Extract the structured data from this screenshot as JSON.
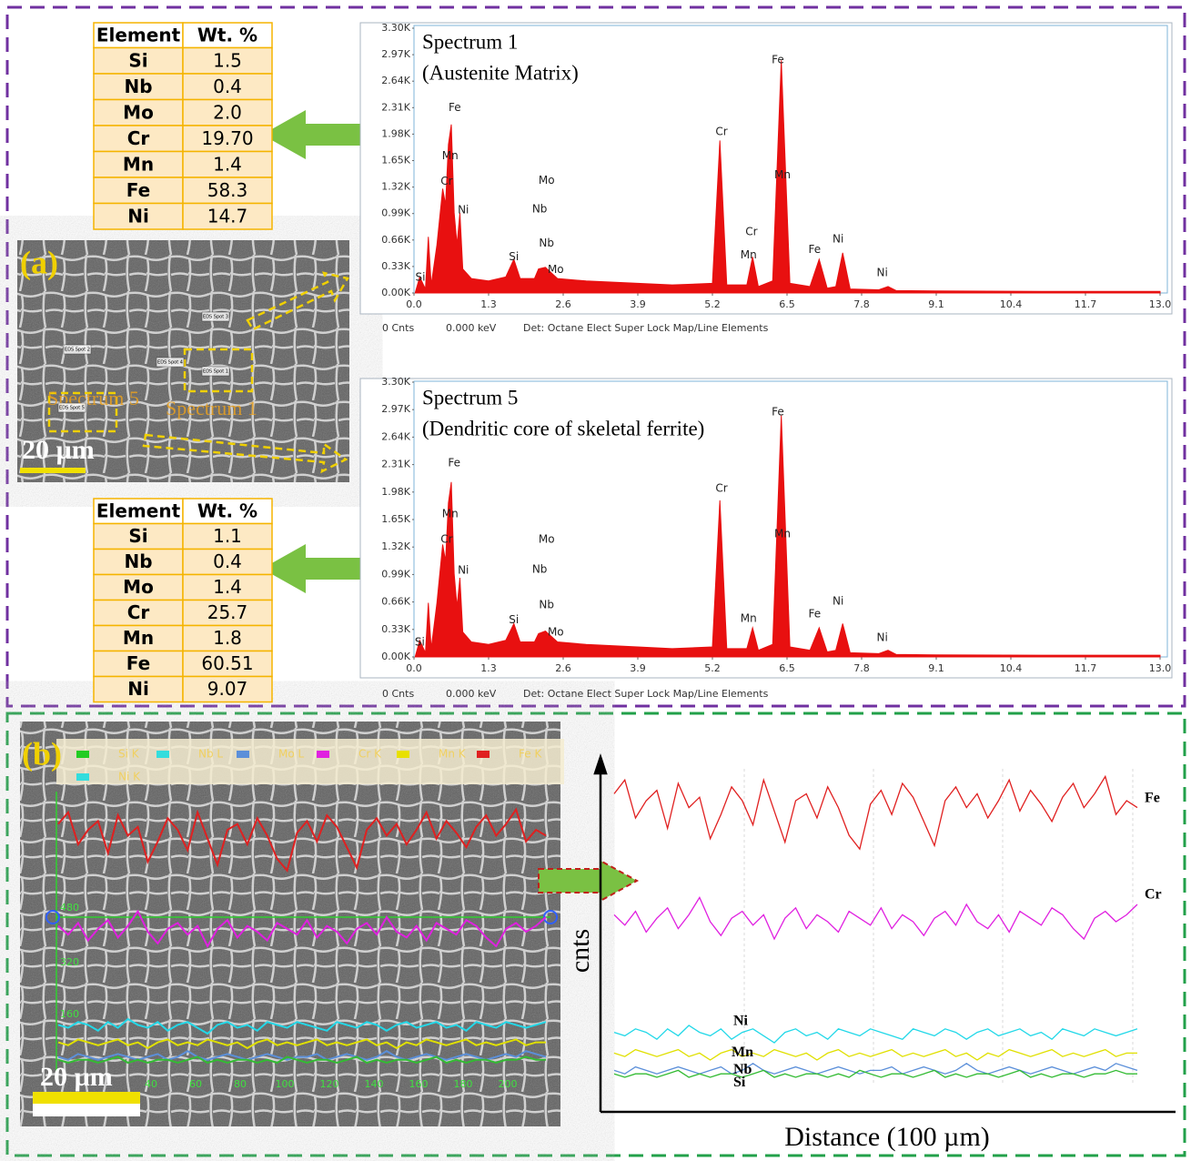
{
  "tables": [
    {
      "header": [
        "Element",
        "Wt. %"
      ],
      "rows": [
        [
          "Si",
          "1.5"
        ],
        [
          "Nb",
          "0.4"
        ],
        [
          "Mo",
          "2.0"
        ],
        [
          "Cr",
          "19.70"
        ],
        [
          "Mn",
          "1.4"
        ],
        [
          "Fe",
          "58.3"
        ],
        [
          "Ni",
          "14.7"
        ]
      ]
    },
    {
      "header": [
        "Element",
        "Wt. %"
      ],
      "rows": [
        [
          "Si",
          "1.1"
        ],
        [
          "Nb",
          "0.4"
        ],
        [
          "Mo",
          "1.4"
        ],
        [
          "Cr",
          "25.7"
        ],
        [
          "Mn",
          "1.8"
        ],
        [
          "Fe",
          "60.51"
        ],
        [
          "Ni",
          "9.07"
        ]
      ]
    }
  ],
  "images": [
    {
      "panel_label": "(a)",
      "scale_bar": "20 µm",
      "region_labels": [
        "Spectrum 5",
        "Spectrum 1"
      ],
      "spot_labels": [
        "EDS Spot 1",
        "EDS Spot 2",
        "EDS Spot 3",
        "EDS Spot 4",
        "EDS Spot 5"
      ]
    },
    {
      "panel_label": "(b)",
      "scale_bar": "20 µm",
      "legend": [
        {
          "label": "Si K",
          "color": "#22cc22"
        },
        {
          "label": "Nb L",
          "color": "#33dddd"
        },
        {
          "label": "Mo L",
          "color": "#5b8fd9"
        },
        {
          "label": "Cr K",
          "color": "#e020e0"
        },
        {
          "label": "Mn K",
          "color": "#e8e000"
        },
        {
          "label": "Fe K",
          "color": "#e02020"
        },
        {
          "label": "Ni K",
          "color": "#33dddd"
        }
      ],
      "overlay_yticks": [
        480,
        320,
        160
      ],
      "overlay_xticks": [
        40,
        60,
        80,
        100,
        120,
        140,
        160,
        180,
        200
      ]
    }
  ],
  "chart_data": [
    {
      "type": "area",
      "title": "Spectrum 1",
      "subtitle": "(Austenite Matrix)",
      "color": "#e81010",
      "x": [
        0.02,
        0.1,
        0.2,
        0.25,
        0.3,
        0.4,
        0.5,
        0.55,
        0.6,
        0.65,
        0.7,
        0.75,
        0.8,
        0.85,
        1.0,
        1.3,
        1.6,
        1.74,
        1.85,
        2.1,
        2.17,
        2.29,
        2.5,
        3.0,
        3.9,
        4.5,
        5.2,
        5.33,
        5.45,
        5.8,
        5.9,
        6.0,
        6.25,
        6.4,
        6.55,
        6.9,
        7.06,
        7.2,
        7.35,
        7.47,
        7.6,
        8.1,
        8.26,
        8.4,
        9.1,
        11.0,
        13.0
      ],
      "values": [
        0,
        200,
        50,
        700,
        100,
        600,
        1300,
        1100,
        1850,
        2100,
        1000,
        600,
        1000,
        300,
        180,
        150,
        200,
        420,
        180,
        180,
        300,
        320,
        180,
        150,
        120,
        100,
        120,
        1900,
        100,
        100,
        450,
        80,
        150,
        2900,
        120,
        80,
        420,
        60,
        80,
        500,
        50,
        40,
        80,
        30,
        25,
        20,
        20
      ],
      "xlim": [
        0,
        13
      ],
      "ylim": [
        0,
        3300
      ],
      "xticks": [
        {
          "value": 0,
          "label": "0.0"
        },
        1.3,
        2.6,
        3.9,
        5.2,
        6.5,
        7.8,
        9.1,
        10.4,
        11.7,
        {
          "value": 13,
          "label": "13.0"
        }
      ],
      "yticks": [
        {
          "value": 0,
          "label": "0.00K"
        },
        {
          "value": 330,
          "label": "0.33K"
        },
        {
          "value": 660,
          "label": "0.66K"
        },
        {
          "value": 990,
          "label": "0.99K"
        },
        {
          "value": 1320,
          "label": "1.32K"
        },
        {
          "value": 1650,
          "label": "1.65K"
        },
        {
          "value": 1980,
          "label": "1.98K"
        },
        {
          "value": 2310,
          "label": "2.31K"
        },
        {
          "value": 2640,
          "label": "2.64K"
        },
        {
          "value": 2970,
          "label": "2.97K"
        },
        {
          "value": 3300,
          "label": "3.30K"
        }
      ],
      "annotations": [
        {
          "text": "Fe",
          "x": 0.71,
          "y": 2310
        },
        {
          "text": "Mn",
          "x": 0.63,
          "y": 1705
        },
        {
          "text": "Cr",
          "x": 0.57,
          "y": 1390
        },
        {
          "text": "Ni",
          "x": 0.86,
          "y": 1030
        },
        {
          "text": "Si",
          "x": 0.11,
          "y": 190
        },
        {
          "text": "Si",
          "x": 1.74,
          "y": 450
        },
        {
          "text": "Mo",
          "x": 2.31,
          "y": 1400
        },
        {
          "text": "Nb",
          "x": 2.19,
          "y": 1045
        },
        {
          "text": "Nb",
          "x": 2.31,
          "y": 620
        },
        {
          "text": "Mo",
          "x": 2.47,
          "y": 290
        },
        {
          "text": "Cr",
          "x": 5.36,
          "y": 2010
        },
        {
          "text": "Cr",
          "x": 5.88,
          "y": 760
        },
        {
          "text": "Mn",
          "x": 5.83,
          "y": 470
        },
        {
          "text": "Fe",
          "x": 6.34,
          "y": 2905
        },
        {
          "text": "Mn",
          "x": 6.42,
          "y": 1470
        },
        {
          "text": "Fe",
          "x": 6.98,
          "y": 540
        },
        {
          "text": "Ni",
          "x": 7.39,
          "y": 670
        },
        {
          "text": "Ni",
          "x": 8.16,
          "y": 250
        }
      ],
      "footer": [
        "0 Cnts",
        "0.000 keV",
        "Det: Octane Elect Super Lock Map/Line Elements"
      ]
    },
    {
      "type": "area",
      "title": "Spectrum 5",
      "subtitle": "(Dendritic core of skeletal ferrite)",
      "color": "#e81010",
      "x": [
        0.02,
        0.1,
        0.2,
        0.25,
        0.3,
        0.4,
        0.5,
        0.55,
        0.6,
        0.65,
        0.7,
        0.75,
        0.8,
        0.85,
        1.0,
        1.3,
        1.6,
        1.74,
        1.85,
        2.1,
        2.17,
        2.29,
        2.5,
        3.0,
        3.9,
        4.5,
        5.2,
        5.33,
        5.45,
        5.8,
        5.9,
        6.0,
        6.25,
        6.4,
        6.55,
        6.9,
        7.06,
        7.2,
        7.35,
        7.47,
        7.6,
        8.1,
        8.26,
        8.4,
        9.1,
        11.0,
        13.0
      ],
      "values": [
        0,
        200,
        50,
        650,
        100,
        650,
        1350,
        1150,
        1850,
        2100,
        1000,
        600,
        950,
        300,
        180,
        150,
        200,
        400,
        180,
        180,
        280,
        310,
        180,
        150,
        120,
        100,
        120,
        1880,
        100,
        100,
        350,
        80,
        150,
        2900,
        120,
        80,
        350,
        60,
        80,
        400,
        50,
        40,
        80,
        30,
        25,
        20,
        20
      ],
      "xlim": [
        0,
        13
      ],
      "ylim": [
        0,
        3300
      ],
      "xticks": [
        {
          "value": 0,
          "label": "0.0"
        },
        1.3,
        2.6,
        3.9,
        5.2,
        6.5,
        7.8,
        9.1,
        10.4,
        11.7,
        {
          "value": 13,
          "label": "13.0"
        }
      ],
      "yticks": [
        {
          "value": 0,
          "label": "0.00K"
        },
        {
          "value": 330,
          "label": "0.33K"
        },
        {
          "value": 660,
          "label": "0.66K"
        },
        {
          "value": 990,
          "label": "0.99K"
        },
        {
          "value": 1320,
          "label": "1.32K"
        },
        {
          "value": 1650,
          "label": "1.65K"
        },
        {
          "value": 1980,
          "label": "1.98K"
        },
        {
          "value": 2310,
          "label": "2.31K"
        },
        {
          "value": 2640,
          "label": "2.64K"
        },
        {
          "value": 2970,
          "label": "2.97K"
        },
        {
          "value": 3300,
          "label": "3.30K"
        }
      ],
      "annotations": [
        {
          "text": "Fe",
          "x": 0.7,
          "y": 2330
        },
        {
          "text": "Mn",
          "x": 0.63,
          "y": 1715
        },
        {
          "text": "Cr",
          "x": 0.57,
          "y": 1410
        },
        {
          "text": "Ni",
          "x": 0.86,
          "y": 1040
        },
        {
          "text": "Si",
          "x": 0.1,
          "y": 175
        },
        {
          "text": "Si",
          "x": 1.74,
          "y": 440
        },
        {
          "text": "Mo",
          "x": 2.31,
          "y": 1410
        },
        {
          "text": "Nb",
          "x": 2.19,
          "y": 1050
        },
        {
          "text": "Nb",
          "x": 2.31,
          "y": 625
        },
        {
          "text": "Mo",
          "x": 2.47,
          "y": 295
        },
        {
          "text": "Cr",
          "x": 5.36,
          "y": 2020
        },
        {
          "text": "Mn",
          "x": 5.83,
          "y": 460
        },
        {
          "text": "Fe",
          "x": 6.34,
          "y": 2940
        },
        {
          "text": "Mn",
          "x": 6.42,
          "y": 1475
        },
        {
          "text": "Fe",
          "x": 6.98,
          "y": 515
        },
        {
          "text": "Ni",
          "x": 7.39,
          "y": 665
        },
        {
          "text": "Ni",
          "x": 8.16,
          "y": 230
        }
      ],
      "footer": [
        "0 Cnts",
        "0.000 keV",
        "Det: Octane Elect Super Lock Map/Line Elements"
      ]
    },
    {
      "type": "line",
      "ylabel": "cnts",
      "xlabel": "Distance (100 µm)",
      "ylim": [
        0,
        100
      ],
      "series": [
        {
          "name": "Fe",
          "color": "#e02020",
          "values": [
            92,
            96,
            85,
            90,
            93,
            82,
            95,
            88,
            91,
            79,
            86,
            94,
            90,
            83,
            96,
            87,
            78,
            90,
            92,
            85,
            94,
            88,
            80,
            76,
            89,
            93,
            86,
            95,
            91,
            84,
            77,
            90,
            94,
            88,
            92,
            85,
            90,
            96,
            87,
            93,
            89,
            84,
            91,
            95,
            88,
            92,
            97,
            86,
            90,
            88
          ]
        },
        {
          "name": "Cr",
          "color": "#e020e0",
          "values": [
            57,
            54,
            58,
            52,
            56,
            59,
            53,
            57,
            62,
            55,
            51,
            56,
            58,
            54,
            57,
            50,
            56,
            59,
            53,
            57,
            55,
            52,
            58,
            56,
            54,
            59,
            53,
            57,
            55,
            51,
            56,
            58,
            54,
            60,
            55,
            53,
            57,
            52,
            58,
            56,
            54,
            59,
            57,
            53,
            50,
            56,
            58,
            55,
            57,
            60
          ]
        },
        {
          "name": "Ni",
          "color": "#22d8e8",
          "values": [
            23,
            22,
            24,
            23,
            21,
            24,
            22,
            25,
            23,
            22,
            24,
            21,
            23,
            24,
            22,
            20,
            23,
            24,
            22,
            23,
            21,
            24,
            23,
            22,
            24,
            23,
            22,
            21,
            24,
            23,
            22,
            24,
            23,
            21,
            23,
            24,
            22,
            23,
            24,
            22,
            23,
            21,
            24,
            23,
            22,
            24,
            23,
            22,
            23,
            24
          ]
        },
        {
          "name": "Mn",
          "color": "#e0e000",
          "values": [
            17,
            16,
            18,
            17,
            16,
            17,
            18,
            16,
            17,
            15,
            17,
            18,
            16,
            17,
            16,
            18,
            17,
            16,
            17,
            15,
            17,
            18,
            16,
            17,
            16,
            17,
            18,
            16,
            17,
            16,
            17,
            18,
            16,
            17,
            15,
            17,
            16,
            18,
            17,
            16,
            17,
            18,
            16,
            17,
            16,
            17,
            18,
            16,
            17,
            17
          ]
        },
        {
          "name": "Nb",
          "color": "#5b8fd9",
          "values": [
            12,
            11,
            13,
            12,
            11,
            12,
            13,
            12,
            11,
            12,
            13,
            11,
            12,
            14,
            12,
            11,
            12,
            13,
            12,
            11,
            12,
            13,
            12,
            11,
            12,
            12,
            13,
            11,
            12,
            13,
            12,
            11,
            12,
            14,
            12,
            11,
            12,
            13,
            12,
            11,
            12,
            13,
            12,
            11,
            12,
            13,
            12,
            14,
            13,
            12
          ]
        },
        {
          "name": "Si",
          "color": "#33bb33",
          "values": [
            11,
            10,
            11,
            11,
            10,
            11,
            12,
            10,
            11,
            10,
            11,
            11,
            10,
            11,
            12,
            10,
            11,
            10,
            11,
            11,
            10,
            11,
            10,
            12,
            11,
            10,
            11,
            11,
            10,
            11,
            12,
            10,
            11,
            10,
            11,
            11,
            10,
            11,
            12,
            10,
            11,
            10,
            11,
            11,
            10,
            11,
            11,
            12,
            11,
            11
          ]
        }
      ]
    }
  ]
}
